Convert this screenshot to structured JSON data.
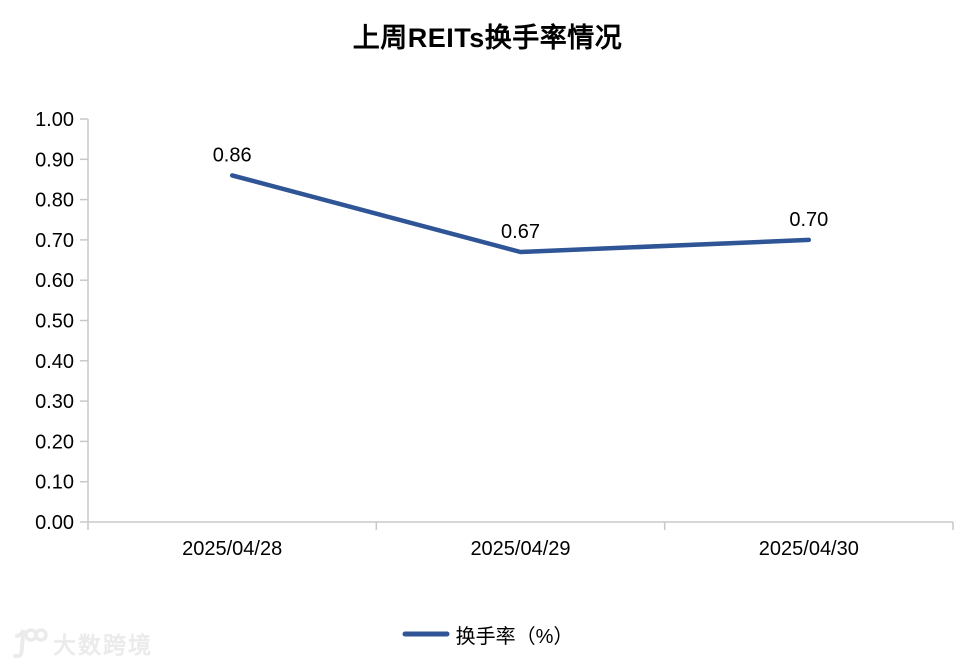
{
  "page": {
    "background": "#ffffff"
  },
  "watermark": {
    "text": "大数跨境",
    "color": "#ebebeb"
  },
  "chart_data": {
    "type": "line",
    "title": "上周REITs换手率情况",
    "categories": [
      "2025/04/28",
      "2025/04/29",
      "2025/04/30"
    ],
    "series": [
      {
        "name": "换手率（%）",
        "values": [
          0.86,
          0.67,
          0.7
        ],
        "data_labels": [
          "0.86",
          "0.67",
          "0.70"
        ],
        "color": "#2f5597"
      }
    ],
    "xlabel": "",
    "ylabel": "",
    "ylim": [
      0.0,
      1.0
    ],
    "y_tick_step": 0.1,
    "y_tick_labels": [
      "0.00",
      "0.10",
      "0.20",
      "0.30",
      "0.40",
      "0.50",
      "0.60",
      "0.70",
      "0.80",
      "0.90",
      "1.00"
    ],
    "grid": false,
    "legend_position": "bottom",
    "axis_color": "#c8c8c8",
    "text_color": "#000000",
    "tick_font_size": 20,
    "data_label_font_size": 20
  }
}
